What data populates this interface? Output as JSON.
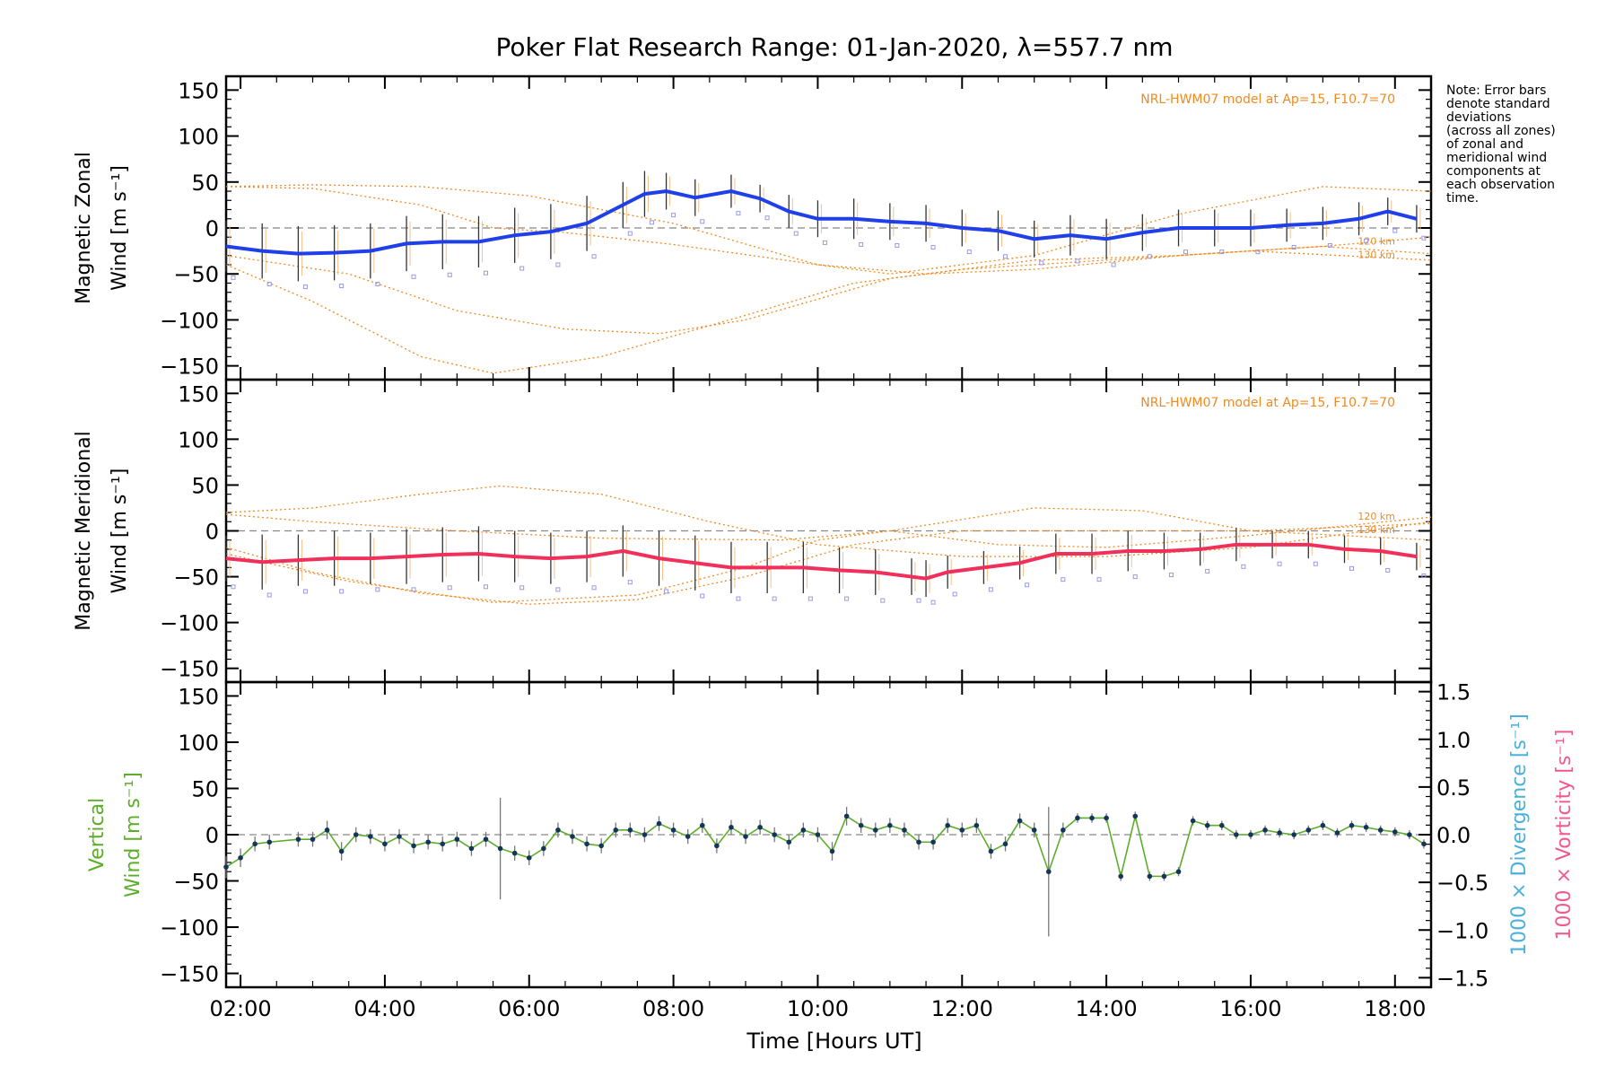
{
  "title": "Poker Flat Research Range: 01-Jan-2020, λ=557.7 nm",
  "note": [
    "Note: Error bars",
    "denote standard",
    "deviations",
    "(across all zones)",
    "of zonal and",
    "meridional wind",
    "components at",
    "each observation",
    "time."
  ],
  "xlabel": "Time [Hours UT]",
  "colors": {
    "zonal": "#1f3fe8",
    "meridional": "#f0305a",
    "vertical": "#5cad2a",
    "model": "#f08a20",
    "scatter": "#9a9ae0",
    "divergence_axis": "#4ab0dc",
    "vorticity_axis": "#f05a8c",
    "zero_line": "#888888"
  },
  "chart_data": [
    {
      "type": "line",
      "panel": "zonal",
      "ylabel": [
        "Magnetic Zonal",
        "Wind [m s⁻¹]"
      ],
      "ylim": [
        -165,
        165
      ],
      "yticks": [
        150,
        100,
        50,
        0,
        -50,
        -100,
        -150
      ],
      "xlim": [
        1.8,
        18.5
      ],
      "xticks": [
        "02:00",
        "04:00",
        "06:00",
        "08:00",
        "10:00",
        "12:00",
        "14:00",
        "16:00",
        "18:00"
      ],
      "model_label": "NRL-HWM07 model at Ap=15, F10.7=70",
      "model_altitude_labels": [
        "120 km",
        "130 km"
      ],
      "series": [
        {
          "x": [
            1.8,
            2.3,
            2.8,
            3.3,
            3.8,
            4.3,
            4.8,
            5.3,
            5.8,
            6.3,
            6.8,
            7.3,
            7.6,
            7.9,
            8.3,
            8.8,
            9.2,
            9.6,
            10.0,
            10.5,
            11.0,
            11.5,
            12.0,
            12.5,
            13.0,
            13.5,
            14.0,
            14.5,
            15.0,
            15.5,
            16.0,
            16.5,
            17.0,
            17.5,
            17.9,
            18.3
          ],
          "y": [
            -20,
            -25,
            -28,
            -27,
            -25,
            -17,
            -15,
            -15,
            -8,
            -4,
            5,
            25,
            37,
            40,
            33,
            40,
            32,
            18,
            10,
            10,
            7,
            5,
            0,
            -3,
            -12,
            -8,
            -12,
            -5,
            0,
            0,
            0,
            3,
            5,
            10,
            18,
            10
          ],
          "error": [
            28,
            30,
            30,
            30,
            30,
            30,
            30,
            28,
            30,
            30,
            30,
            25,
            25,
            20,
            20,
            18,
            15,
            18,
            20,
            22,
            20,
            20,
            20,
            22,
            20,
            22,
            22,
            20,
            20,
            20,
            20,
            18,
            18,
            18,
            15,
            15
          ]
        }
      ],
      "model_curves": [
        {
          "x": [
            1.8,
            3,
            4.5,
            6,
            8,
            10,
            11.5,
            13,
            15,
            17,
            18.5
          ],
          "y": [
            45,
            47,
            45,
            35,
            5,
            -40,
            -50,
            -45,
            -30,
            -20,
            -28
          ]
        },
        {
          "x": [
            1.8,
            3,
            4.5,
            5.5,
            6.5,
            8,
            10,
            11,
            13,
            15,
            17,
            18.5
          ],
          "y": [
            45,
            43,
            25,
            0,
            -5,
            -18,
            -40,
            -50,
            -30,
            15,
            45,
            40
          ]
        },
        {
          "x": [
            1.8,
            3,
            4.5,
            5.5,
            7,
            9,
            10.5,
            12,
            14,
            16,
            18.5
          ],
          "y": [
            -40,
            -80,
            -140,
            -158,
            -140,
            -95,
            -60,
            -45,
            -35,
            -25,
            -35
          ]
        },
        {
          "x": [
            1.8,
            3.5,
            5,
            6.5,
            7.8,
            9,
            11,
            13,
            15,
            17,
            18.5
          ],
          "y": [
            -30,
            -50,
            -90,
            -110,
            -115,
            -100,
            -55,
            -35,
            -30,
            -20,
            -10
          ]
        }
      ]
    },
    {
      "type": "line",
      "panel": "meridional",
      "ylabel": [
        "Magnetic Meridional",
        "Wind [m s⁻¹]"
      ],
      "ylim": [
        -165,
        165
      ],
      "yticks": [
        150,
        100,
        50,
        0,
        -50,
        -100,
        -150
      ],
      "xlim": [
        1.8,
        18.5
      ],
      "model_label": "NRL-HWM07 model at Ap=15, F10.7=70",
      "model_altitude_labels": [
        "120 km",
        "130 km"
      ],
      "series": [
        {
          "x": [
            1.8,
            2.3,
            2.8,
            3.3,
            3.8,
            4.3,
            4.8,
            5.3,
            5.8,
            6.3,
            6.8,
            7.3,
            7.8,
            8.3,
            8.8,
            9.3,
            9.8,
            10.3,
            10.8,
            11.3,
            11.5,
            11.8,
            12.3,
            12.8,
            13.3,
            13.8,
            14.3,
            14.8,
            15.3,
            15.8,
            16.3,
            16.8,
            17.3,
            17.8,
            18.3
          ],
          "y": [
            -30,
            -34,
            -32,
            -30,
            -30,
            -28,
            -26,
            -25,
            -28,
            -30,
            -28,
            -22,
            -30,
            -35,
            -40,
            -40,
            -40,
            -43,
            -45,
            -50,
            -52,
            -45,
            -40,
            -35,
            -25,
            -25,
            -22,
            -22,
            -20,
            -15,
            -15,
            -15,
            -20,
            -22,
            -28
          ],
          "error": [
            25,
            30,
            28,
            30,
            28,
            30,
            30,
            30,
            28,
            28,
            28,
            28,
            30,
            30,
            28,
            28,
            28,
            25,
            25,
            20,
            20,
            18,
            18,
            18,
            22,
            22,
            22,
            20,
            18,
            18,
            15,
            15,
            15,
            15,
            15
          ]
        }
      ],
      "model_curves": [
        {
          "x": [
            1.8,
            3,
            4.5,
            5.6,
            7,
            8.5,
            10,
            12,
            14,
            16,
            18.5
          ],
          "y": [
            20,
            25,
            40,
            49,
            40,
            10,
            -15,
            -28,
            -28,
            -18,
            10
          ]
        },
        {
          "x": [
            1.8,
            3,
            5,
            7,
            9.5,
            11,
            13,
            14.5,
            16,
            18.5
          ],
          "y": [
            18,
            10,
            0,
            -8,
            -10,
            0,
            25,
            22,
            0,
            -10
          ]
        },
        {
          "x": [
            1.8,
            3,
            4.5,
            6,
            7.5,
            9,
            10.5,
            12,
            14,
            16,
            18.5
          ],
          "y": [
            -18,
            -45,
            -68,
            -80,
            -75,
            -50,
            -15,
            0,
            0,
            0,
            8
          ]
        },
        {
          "x": [
            1.8,
            3.5,
            5.5,
            7.5,
            9,
            10,
            11,
            12.5,
            14,
            16,
            18.5
          ],
          "y": [
            -25,
            -55,
            -78,
            -70,
            -40,
            -10,
            0,
            -15,
            -18,
            -5,
            15
          ]
        }
      ]
    },
    {
      "type": "line",
      "panel": "vertical",
      "ylabel": [
        "Vertical",
        "Wind [m s⁻¹]"
      ],
      "ylim": [
        -165,
        165
      ],
      "yticks": [
        150,
        100,
        50,
        0,
        -50,
        -100,
        -150
      ],
      "y2lim": [
        -1.6,
        1.6
      ],
      "y2ticks": [
        "1.5",
        "1.0",
        "0.5",
        "0.0",
        "-0.5",
        "-1.0",
        "-1.5"
      ],
      "y2label_divergence": "1000 × Divergence [s⁻¹]",
      "y2label_vorticity": "1000 × Vorticity [s⁻¹]",
      "xlim": [
        1.8,
        18.5
      ],
      "series": [
        {
          "x": [
            1.8,
            2.0,
            2.2,
            2.4,
            2.8,
            3.0,
            3.2,
            3.4,
            3.6,
            3.8,
            4.0,
            4.2,
            4.4,
            4.6,
            4.8,
            5.0,
            5.2,
            5.4,
            5.6,
            5.8,
            6.0,
            6.2,
            6.4,
            6.6,
            6.8,
            7.0,
            7.2,
            7.4,
            7.6,
            7.8,
            8.0,
            8.2,
            8.4,
            8.6,
            8.8,
            9.0,
            9.2,
            9.4,
            9.6,
            9.8,
            10.0,
            10.2,
            10.4,
            10.6,
            10.8,
            11.0,
            11.2,
            11.4,
            11.6,
            11.8,
            12.0,
            12.2,
            12.4,
            12.6,
            12.8,
            13.0,
            13.2,
            13.4,
            13.6,
            13.8,
            14.0,
            14.2,
            14.4,
            14.6,
            14.8,
            15.0,
            15.2,
            15.4,
            15.6,
            15.8,
            16.0,
            16.2,
            16.4,
            16.6,
            16.8,
            17.0,
            17.2,
            17.4,
            17.6,
            17.8,
            18.0,
            18.2,
            18.4
          ],
          "y": [
            -35,
            -25,
            -10,
            -8,
            -5,
            -5,
            5,
            -18,
            0,
            -2,
            -10,
            -2,
            -12,
            -8,
            -10,
            -5,
            -15,
            -5,
            -15,
            -20,
            -25,
            -15,
            5,
            -2,
            -10,
            -12,
            5,
            5,
            0,
            12,
            5,
            -2,
            10,
            -12,
            8,
            -2,
            8,
            0,
            -8,
            5,
            0,
            -18,
            20,
            10,
            5,
            10,
            5,
            -8,
            -8,
            10,
            5,
            10,
            -18,
            -10,
            15,
            5,
            -40,
            5,
            18,
            18,
            18,
            -45,
            20,
            -45,
            -45,
            -40,
            15,
            10,
            10,
            0,
            0,
            5,
            2,
            0,
            5,
            10,
            2,
            10,
            8,
            5,
            3,
            0,
            -10
          ],
          "error": [
            12,
            10,
            8,
            8,
            8,
            8,
            10,
            10,
            8,
            8,
            8,
            8,
            8,
            8,
            8,
            8,
            8,
            8,
            55,
            8,
            8,
            8,
            8,
            8,
            8,
            8,
            8,
            8,
            8,
            8,
            8,
            8,
            8,
            8,
            8,
            8,
            8,
            8,
            8,
            8,
            8,
            10,
            10,
            8,
            8,
            8,
            8,
            8,
            8,
            8,
            8,
            8,
            8,
            8,
            8,
            8,
            70,
            8,
            5,
            5,
            5,
            5,
            5,
            5,
            5,
            5,
            5,
            5,
            5,
            5,
            5,
            5,
            5,
            5,
            5,
            5,
            5,
            5,
            5,
            5,
            5,
            5,
            5
          ]
        }
      ]
    }
  ]
}
